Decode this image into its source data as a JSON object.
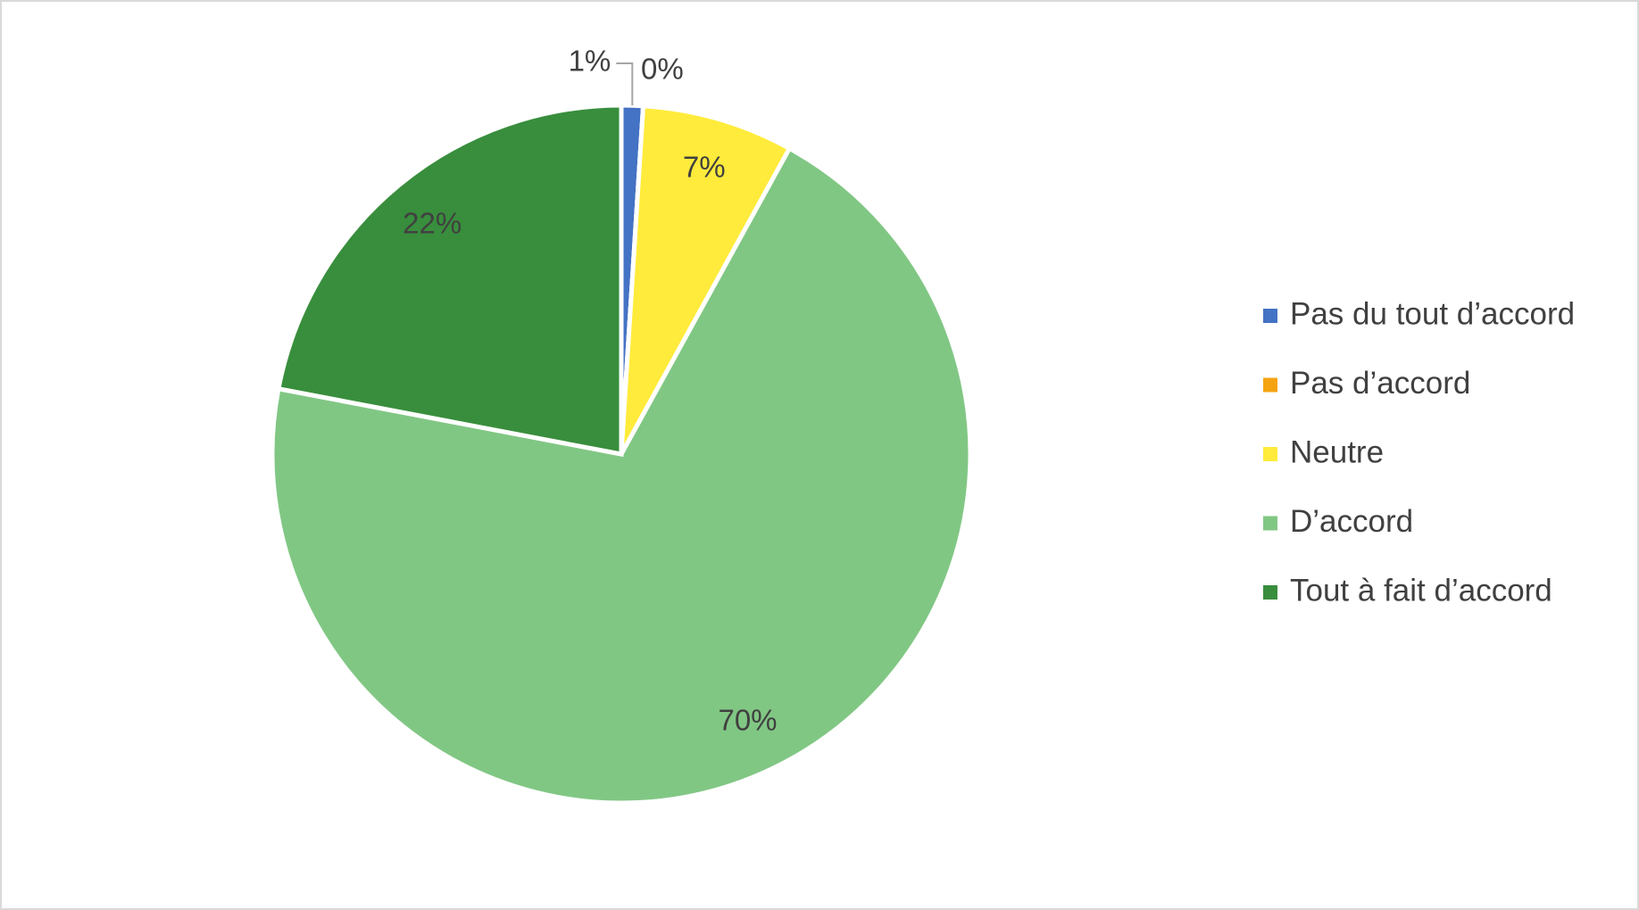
{
  "chart_data": {
    "type": "pie",
    "categories": [
      "Pas du tout d’accord",
      "Pas d’accord",
      "Neutre",
      "D’accord",
      "Tout à fait d’accord"
    ],
    "values": [
      1,
      0,
      7,
      70,
      22
    ],
    "value_labels": [
      "1%",
      "0%",
      "7%",
      "70%",
      "22%"
    ],
    "colors": [
      "#4472c4",
      "#f5a312",
      "#ffeb3b",
      "#81c784",
      "#388e3c"
    ],
    "legend": "right"
  }
}
